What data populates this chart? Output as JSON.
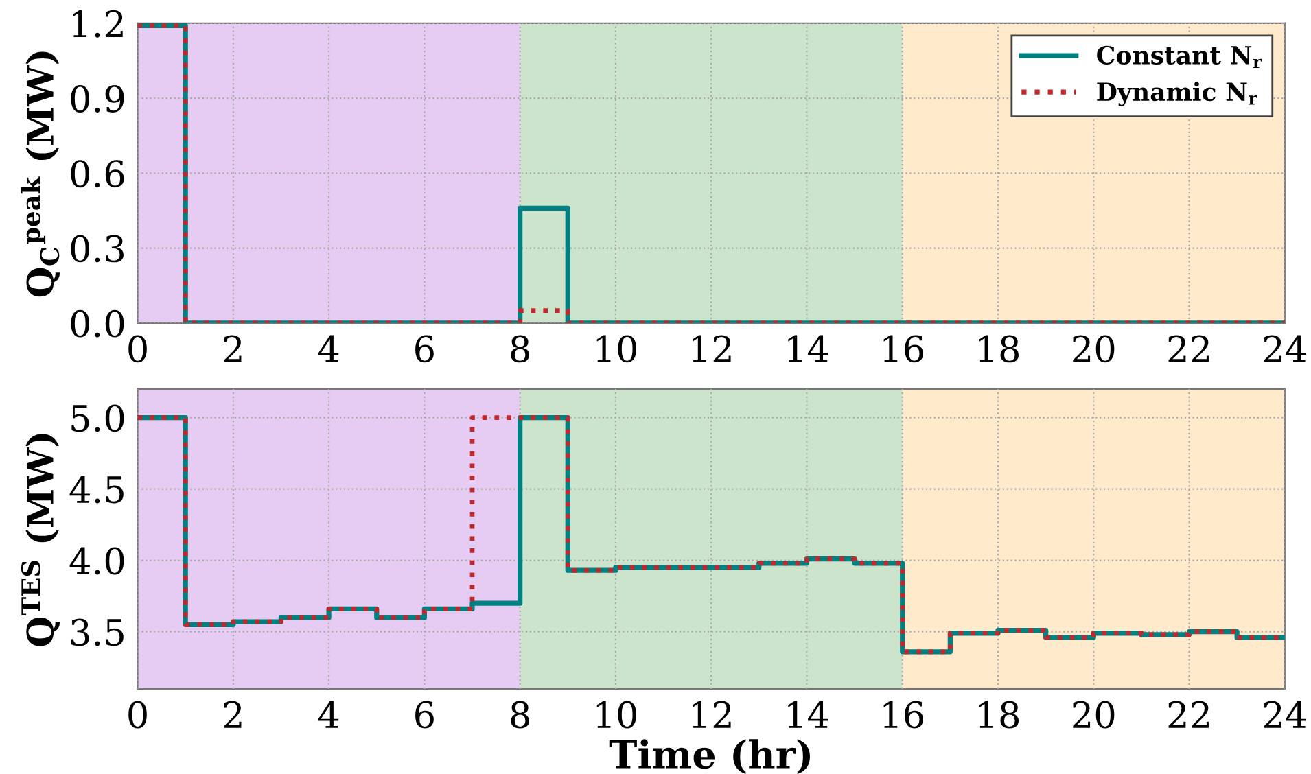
{
  "chart_data": [
    {
      "type": "step",
      "ylabel": "Q$_{C}$$^{peak}$ (MW)",
      "x": [
        0,
        1,
        2,
        3,
        4,
        5,
        6,
        7,
        8,
        9,
        10,
        11,
        12,
        13,
        14,
        15,
        16,
        17,
        18,
        19,
        20,
        21,
        22,
        23,
        24
      ],
      "series": [
        {
          "name": "Constant N$_{r}$",
          "color": "#008080",
          "line_style": "solid",
          "values": [
            1.19,
            0,
            0,
            0,
            0,
            0,
            0,
            0,
            0.46,
            0,
            0,
            0,
            0,
            0,
            0,
            0,
            0,
            0,
            0,
            0,
            0,
            0,
            0,
            0,
            0
          ]
        },
        {
          "name": "Dynamic N$_{r}$",
          "color": "#c0282d",
          "line_style": "dotted",
          "values": [
            1.19,
            0,
            0,
            0,
            0,
            0,
            0,
            0,
            0.05,
            0,
            0,
            0,
            0,
            0,
            0,
            0,
            0,
            0,
            0,
            0,
            0,
            0,
            0,
            0,
            0
          ]
        }
      ],
      "xlim": [
        0,
        24
      ],
      "xticks": [
        0,
        2,
        4,
        6,
        8,
        10,
        12,
        14,
        16,
        18,
        20,
        22,
        24
      ],
      "ylim": [
        0,
        1.2
      ],
      "yticks": [
        {
          "value": 0,
          "label": "0.0"
        },
        0.3,
        0.6,
        0.9,
        1.2
      ],
      "bands": [
        {
          "axis": "x",
          "from": 0,
          "to": 8,
          "color": "#e6ccf2"
        },
        {
          "axis": "x",
          "from": 8,
          "to": 16,
          "color": "#cce4cc"
        },
        {
          "axis": "x",
          "from": 16,
          "to": 24,
          "color": "#ffebcc"
        }
      ],
      "grid": true,
      "legend": "top right"
    },
    {
      "type": "step",
      "xlabel": "Time (hr)",
      "ylabel": "Q$^{TES}$ (MW)",
      "x": [
        0,
        1,
        2,
        3,
        4,
        5,
        6,
        7,
        8,
        9,
        10,
        11,
        12,
        13,
        14,
        15,
        16,
        17,
        18,
        19,
        20,
        21,
        22,
        23,
        24
      ],
      "series": [
        {
          "color": "#008080",
          "line_style": "solid",
          "values": [
            5.0,
            3.55,
            3.57,
            3.6,
            3.66,
            3.6,
            3.66,
            3.7,
            5.0,
            3.93,
            3.95,
            3.95,
            3.95,
            3.98,
            4.01,
            3.98,
            3.36,
            3.49,
            3.51,
            3.46,
            3.49,
            3.48,
            3.5,
            3.46,
            3.46
          ]
        },
        {
          "color": "#c0282d",
          "line_style": "dotted",
          "values": [
            5.0,
            3.55,
            3.57,
            3.6,
            3.66,
            3.6,
            3.66,
            5.0,
            5.0,
            3.93,
            3.95,
            3.95,
            3.95,
            3.98,
            4.01,
            3.98,
            3.36,
            3.49,
            3.51,
            3.46,
            3.49,
            3.48,
            3.5,
            3.46,
            3.46
          ]
        }
      ],
      "xlim": [
        0,
        24
      ],
      "xticks": [
        0,
        2,
        4,
        6,
        8,
        10,
        12,
        14,
        16,
        18,
        20,
        22,
        24
      ],
      "ylim": [
        3.1,
        5.2
      ],
      "yticks": [
        3.5,
        {
          "value": 4.0,
          "label": "4.0"
        },
        4.5,
        {
          "value": 5.0,
          "label": "5.0"
        }
      ],
      "bands": [
        {
          "axis": "x",
          "from": 0,
          "to": 8,
          "color": "#e6ccf2"
        },
        {
          "axis": "x",
          "from": 8,
          "to": 16,
          "color": "#cce4cc"
        },
        {
          "axis": "x",
          "from": 16,
          "to": 24,
          "color": "#ffebcc"
        }
      ],
      "grid": true
    }
  ]
}
